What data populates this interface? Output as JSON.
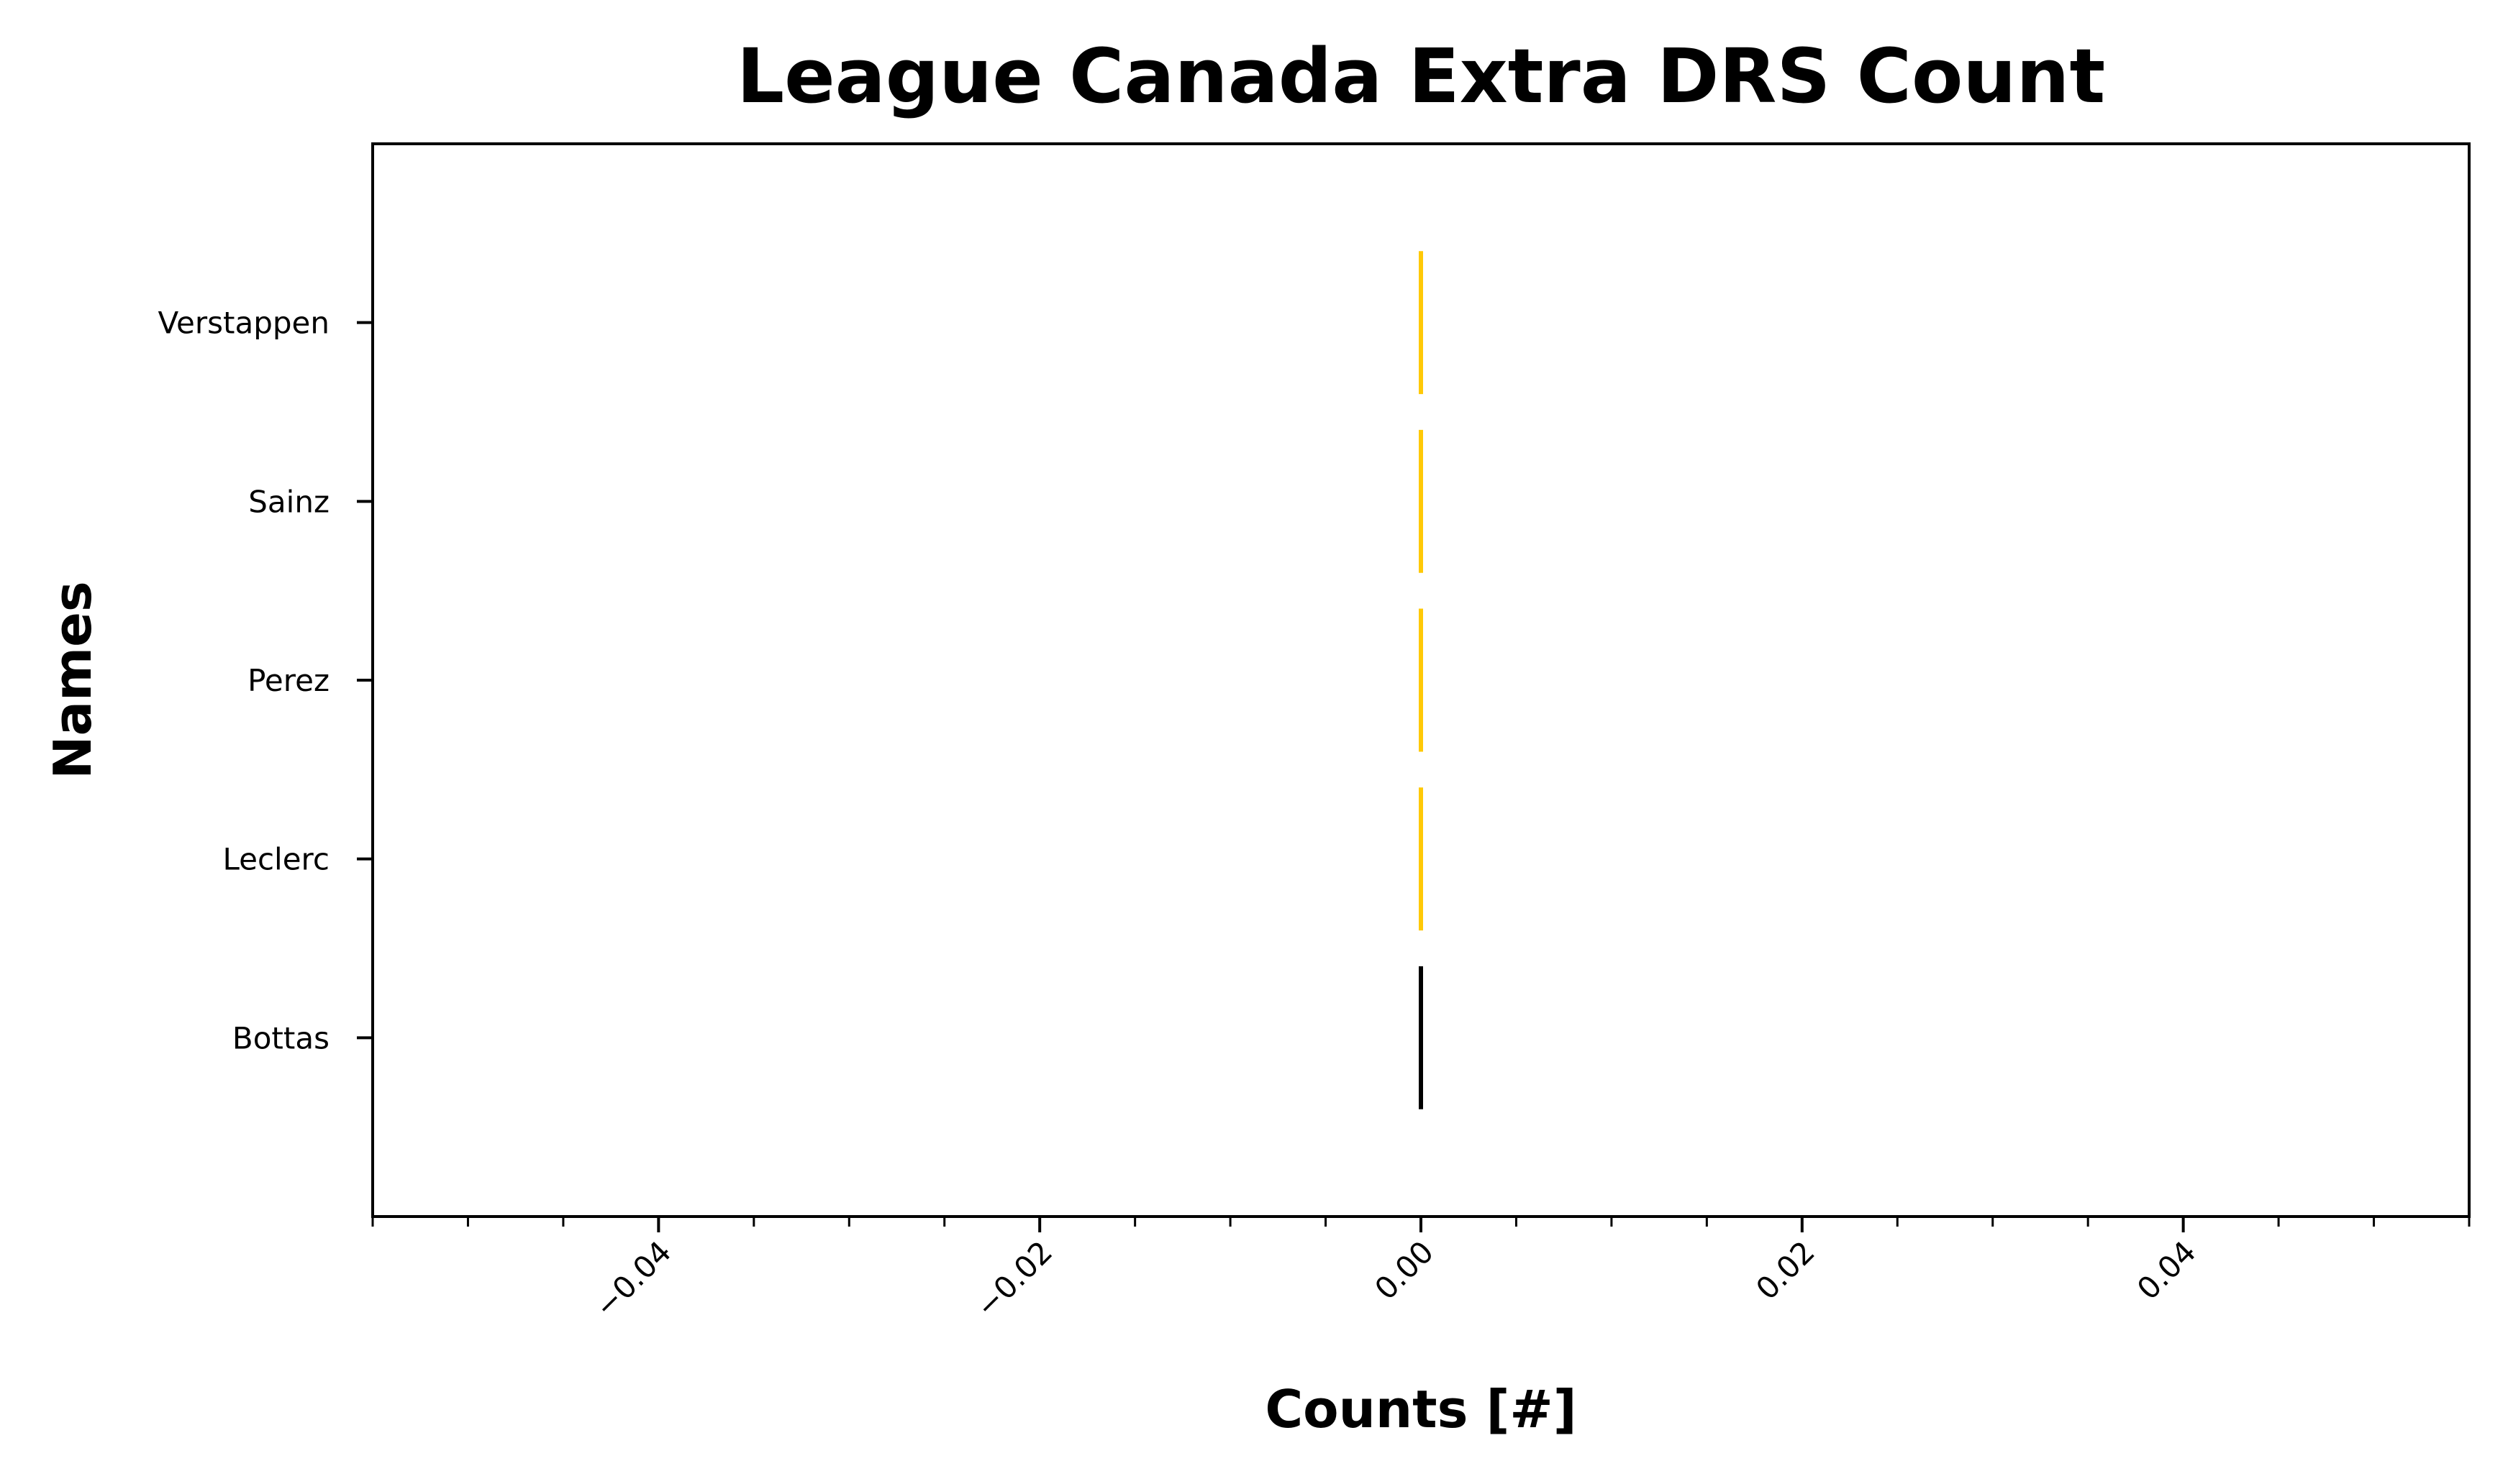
{
  "chart_data": {
    "type": "bar",
    "orientation": "horizontal",
    "title": "League Canada Extra DRS Count",
    "xlabel": "Counts [#]",
    "ylabel": "Names",
    "categories": [
      "Bottas",
      "Leclerc",
      "Perez",
      "Sainz",
      "Verstappen"
    ],
    "values": [
      0,
      0,
      0,
      0,
      0
    ],
    "bar_colors": [
      "#000000",
      "#FFC906",
      "#FFC906",
      "#FFC906",
      "#FFC906"
    ],
    "xlim": [
      -0.055,
      0.055
    ],
    "xticks": [
      -0.04,
      -0.02,
      0.0,
      0.02,
      0.04
    ],
    "xtick_labels": [
      "−0.04",
      "−0.02",
      "0.00",
      "0.02",
      "0.04"
    ],
    "xtick_rotation": 45,
    "grid": false,
    "legend": "none"
  }
}
